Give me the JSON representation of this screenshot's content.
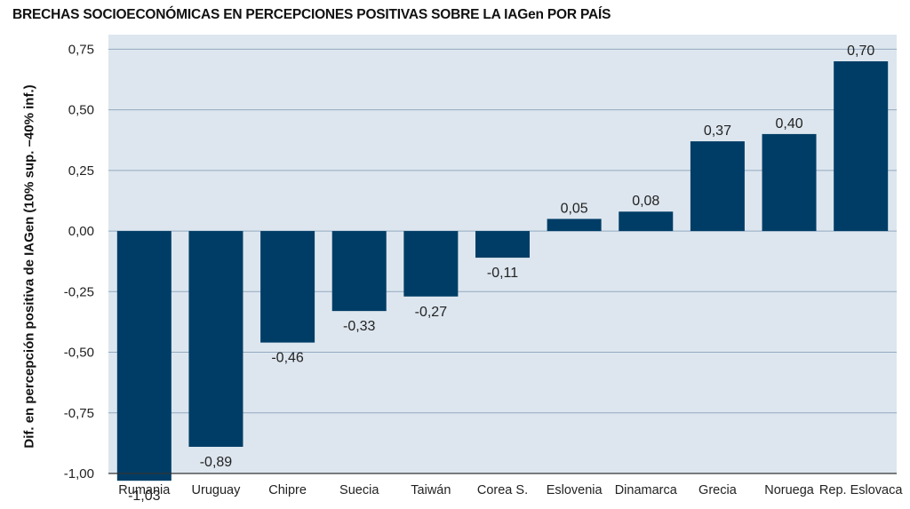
{
  "chart_data": {
    "type": "bar",
    "title": "BRECHAS SOCIOECONÓMICAS EN PERCEPCIONES POSITIVAS SOBRE LA IAGen POR PAÍS",
    "xlabel": "",
    "ylabel": "Dif. en percepción positiva de IAGen (10% sup. –40% inf.)",
    "categories": [
      "Rumania",
      "Uruguay",
      "Chipre",
      "Suecia",
      "Taiwán",
      "Corea S.",
      "Eslovenia",
      "Dinamarca",
      "Grecia",
      "Noruega",
      "Rep. Eslovaca"
    ],
    "values": [
      -1.03,
      -0.89,
      -0.46,
      -0.33,
      -0.27,
      -0.11,
      0.05,
      0.08,
      0.37,
      0.4,
      0.7
    ],
    "data_labels": [
      "-1,03",
      "-0,89",
      "-0,46",
      "-0,33",
      "-0,27",
      "-0,11",
      "0,05",
      "0,08",
      "0,37",
      "0,40",
      "0,70"
    ],
    "y_ticks": [
      0.75,
      0.5,
      0.25,
      0.0,
      -0.25,
      -0.5,
      -0.75,
      -1.0
    ],
    "y_tick_labels": [
      "0,75",
      "0,50",
      "0,25",
      "0,00",
      "-0,25",
      "-0,50",
      "-0,75",
      "-1,00"
    ],
    "ylim": [
      -1.0,
      0.75
    ],
    "grid": true,
    "legend": "none",
    "colors": {
      "bar": "#003d66",
      "plot_background": "#dde6ef",
      "gridline": "#93a9bf"
    }
  }
}
